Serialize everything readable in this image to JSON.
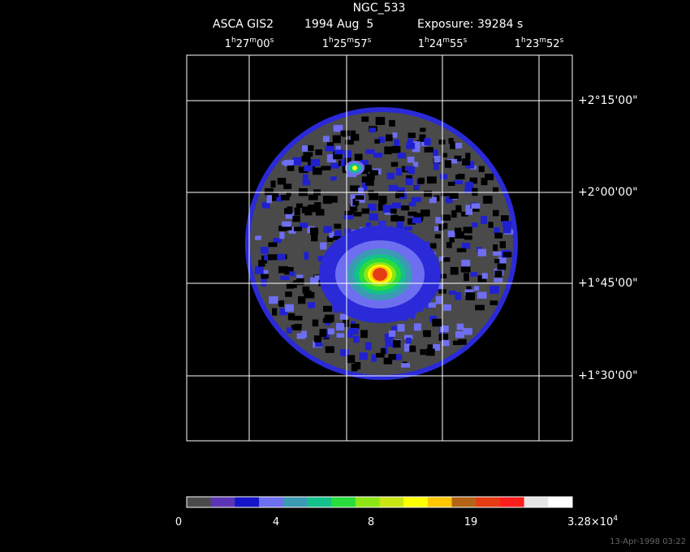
{
  "header": {
    "object": "NGC_533",
    "instrument": "ASCA GIS2",
    "date": "1994 Aug  5",
    "exposure": "Exposure: 39284 s"
  },
  "ra_labels": [
    [
      "1",
      "h",
      "27",
      "m",
      "00",
      "s"
    ],
    [
      "1",
      "h",
      "25",
      "m",
      "57",
      "s"
    ],
    [
      "1",
      "h",
      "24",
      "m",
      "55",
      "s"
    ],
    [
      "1",
      "h",
      "23",
      "m",
      "52",
      "s"
    ]
  ],
  "dec_labels": [
    "+2°15'00\"",
    "+2°00'00\"",
    "+1°45'00\"",
    "+1°30'00\""
  ],
  "colorbar": {
    "colors": [
      "#4a4a4a",
      "#5a34b4",
      "#1414c8",
      "#6e6ef0",
      "#3c9ab4",
      "#14c08c",
      "#28dc3c",
      "#8ce614",
      "#c8e614",
      "#ffff00",
      "#ffc800",
      "#b46414",
      "#e63c14",
      "#ff1e1e",
      "#e6e6e6",
      "#ffffff"
    ],
    "labels": [
      [
        "0"
      ],
      [
        "4"
      ],
      [
        "8"
      ],
      [
        "19"
      ],
      [
        "3.28×10",
        "4"
      ]
    ]
  },
  "timestamp": "13-Apr-1998 03:22"
}
